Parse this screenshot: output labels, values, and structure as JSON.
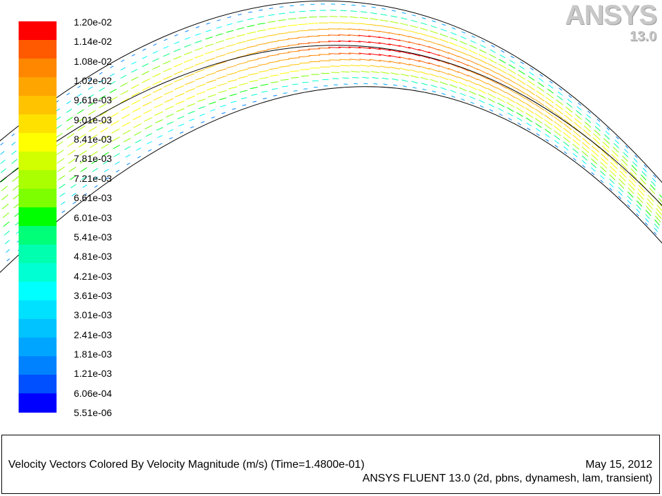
{
  "legend": {
    "labels": [
      "1.20e-02",
      "1.14e-02",
      "1.08e-02",
      "1.02e-02",
      "9.61e-03",
      "9.01e-03",
      "8.41e-03",
      "7.81e-03",
      "7.21e-03",
      "6.61e-03",
      "6.01e-03",
      "5.41e-03",
      "4.81e-03",
      "4.21e-03",
      "3.61e-03",
      "3.01e-03",
      "2.41e-03",
      "1.81e-03",
      "1.21e-03",
      "6.06e-04",
      "5.51e-06"
    ],
    "colors": [
      "#ff0000",
      "#ff5a00",
      "#ff8700",
      "#ffa500",
      "#ffc300",
      "#ffe100",
      "#ffff00",
      "#d2ff00",
      "#aaff00",
      "#7dff00",
      "#00ff00",
      "#00ff78",
      "#00ffaf",
      "#00ffd2",
      "#00ffff",
      "#00e1ff",
      "#00c3ff",
      "#00a5ff",
      "#0082ff",
      "#0050ff",
      "#0000ff"
    ]
  },
  "logo": {
    "brand": "ANSYS",
    "version": "13.0"
  },
  "footer": {
    "title": "Velocity Vectors Colored By Velocity Magnitude (m/s)  (Time=1.4800e-01)",
    "date": "May 15, 2012",
    "solver": "ANSYS FLUENT 13.0 (2d, pbns, dynamesh, lam, transient)"
  }
}
